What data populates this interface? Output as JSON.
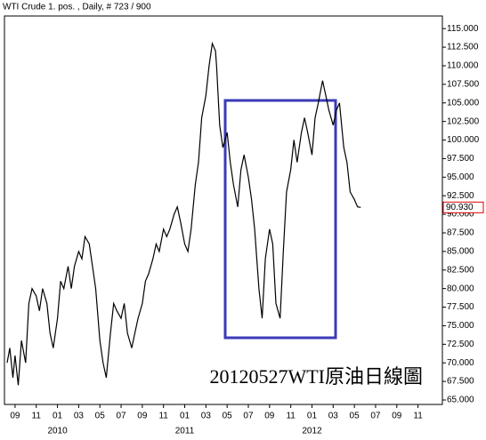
{
  "chart_data": {
    "type": "line",
    "title": "WTI Crude 1. pos. , Daily, # 723 / 900",
    "annotation": "20120527WTI原油日線圖",
    "color": "#000000",
    "x": [
      -0.75,
      -0.5,
      -0.2,
      0,
      0.3,
      0.6,
      1,
      1.3,
      1.6,
      2,
      2.3,
      2.6,
      3,
      3.3,
      3.6,
      4,
      4.3,
      4.6,
      5,
      5.3,
      5.6,
      6,
      6.3,
      6.6,
      7,
      7.3,
      7.6,
      8,
      8.3,
      8.6,
      9,
      9.3,
      9.6,
      10,
      10.3,
      10.6,
      11,
      11.3,
      11.6,
      12,
      12.3,
      12.6,
      13,
      13.3,
      13.6,
      14,
      14.3,
      14.6,
      15,
      15.3,
      15.6,
      16,
      16.3,
      16.6,
      17,
      17.3,
      17.6,
      18,
      18.3,
      18.6,
      18.9,
      19,
      19.3,
      19.6,
      20,
      20.3,
      20.6,
      21,
      21.3,
      21.6,
      22,
      22.3,
      22.6,
      23,
      23.3,
      23.6,
      24,
      24.3,
      24.6,
      25,
      25.3,
      25.6,
      26,
      26.3,
      26.6,
      27,
      27.3,
      27.6,
      28,
      28.3,
      28.6,
      29,
      29.3,
      29.6,
      30,
      30.3,
      30.6,
      31,
      31.3,
      31.6,
      32,
      32.3,
      32.6
    ],
    "values": [
      70,
      72,
      68,
      71,
      67,
      73,
      70,
      78,
      80,
      79,
      77,
      80,
      78,
      74,
      72,
      76,
      81,
      80,
      83,
      80,
      83,
      85,
      84,
      87,
      86,
      83,
      80,
      73,
      70,
      68,
      74,
      78,
      77,
      76,
      78,
      74,
      72,
      74,
      76,
      78,
      81,
      82,
      84,
      86,
      85,
      88,
      87,
      88,
      90,
      91,
      89,
      86,
      85,
      88,
      94,
      97,
      103,
      106,
      110,
      113,
      112,
      110,
      102,
      99,
      101,
      97,
      94,
      91,
      96,
      98,
      95,
      92,
      88,
      80,
      76,
      84,
      88,
      86,
      78,
      76,
      85,
      93,
      96,
      100,
      97,
      101,
      103,
      101,
      98,
      103,
      105,
      108,
      106,
      104,
      102,
      104,
      105,
      99,
      97,
      93,
      92,
      91,
      90.93
    ],
    "last_price": {
      "value": 90.93,
      "label": "90.930"
    },
    "xlim": [
      -1.0,
      40.3
    ],
    "xticks": [
      {
        "value": 0,
        "label": "09"
      },
      {
        "value": 2,
        "label": "11"
      },
      {
        "value": 4,
        "label": "01"
      },
      {
        "value": 6,
        "label": "03"
      },
      {
        "value": 8,
        "label": "05"
      },
      {
        "value": 10,
        "label": "07"
      },
      {
        "value": 12,
        "label": "09"
      },
      {
        "value": 14,
        "label": "11"
      },
      {
        "value": 16,
        "label": "01"
      },
      {
        "value": 18,
        "label": "03"
      },
      {
        "value": 20,
        "label": "05"
      },
      {
        "value": 22,
        "label": "07"
      },
      {
        "value": 24,
        "label": "09"
      },
      {
        "value": 26,
        "label": "11"
      },
      {
        "value": 28,
        "label": "01"
      },
      {
        "value": 30,
        "label": "03"
      },
      {
        "value": 32,
        "label": "05"
      },
      {
        "value": 34,
        "label": "07"
      },
      {
        "value": 36,
        "label": "09"
      },
      {
        "value": 38,
        "label": "11"
      }
    ],
    "year_labels": [
      {
        "value": 4,
        "label": "2010"
      },
      {
        "value": 16,
        "label": "2011"
      },
      {
        "value": 28,
        "label": "2012"
      }
    ],
    "ylim": [
      64.4,
      116.7
    ],
    "yticks": [
      {
        "value": 65,
        "label": "65.000"
      },
      {
        "value": 67.5,
        "label": "67.500"
      },
      {
        "value": 70,
        "label": "70.000"
      },
      {
        "value": 72.5,
        "label": "72.500"
      },
      {
        "value": 75,
        "label": "75.000"
      },
      {
        "value": 77.5,
        "label": "77.500"
      },
      {
        "value": 80,
        "label": "80.000"
      },
      {
        "value": 82.5,
        "label": "82.500"
      },
      {
        "value": 85,
        "label": "85.000"
      },
      {
        "value": 87.5,
        "label": "87.500"
      },
      {
        "value": 90,
        "label": "90.000"
      },
      {
        "value": 92.5,
        "label": "92.500"
      },
      {
        "value": 95,
        "label": "95.000"
      },
      {
        "value": 97.5,
        "label": "97.500"
      },
      {
        "value": 100,
        "label": "100.000"
      },
      {
        "value": 102.5,
        "label": "102.500"
      },
      {
        "value": 105,
        "label": "105.000"
      },
      {
        "value": 107.5,
        "label": "107.500"
      },
      {
        "value": 110,
        "label": "110.000"
      },
      {
        "value": 112.5,
        "label": "112.500"
      },
      {
        "value": 115,
        "label": "115.000"
      }
    ]
  }
}
